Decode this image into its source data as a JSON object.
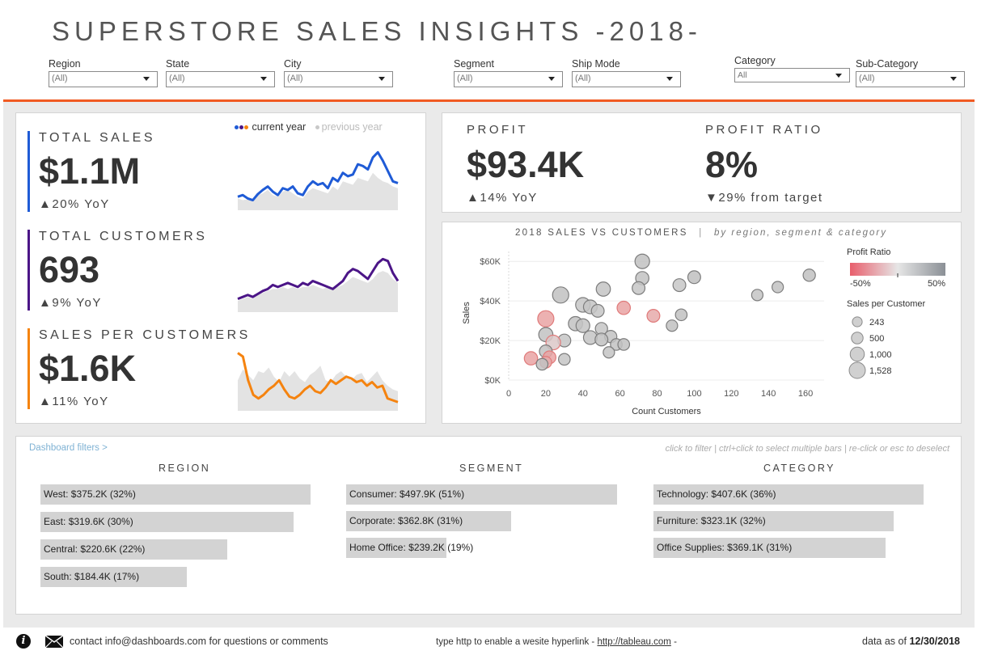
{
  "title": "SUPERSTORE SALES INSIGHTS -2018-",
  "filters": [
    {
      "label": "Region",
      "value": "(All)"
    },
    {
      "label": "State",
      "value": "(All)"
    },
    {
      "label": "City",
      "value": "(All)"
    },
    {
      "label": "Segment",
      "value": "(All)"
    },
    {
      "label": "Ship Mode",
      "value": "(All)"
    },
    {
      "label": "Category",
      "value": "All"
    },
    {
      "label": "Sub-Category",
      "value": "(All)"
    }
  ],
  "colors": {
    "orange": "#f15a22",
    "sales": "#1f5bd6",
    "customers": "#4b1587",
    "spc": "#f5830f",
    "prev": "#e3e3e3"
  },
  "legend": {
    "current": "current year",
    "previous": "previous year"
  },
  "kpis": [
    {
      "label": "TOTAL SALES",
      "value": "$1.1M",
      "yoy": "▲20% YoY",
      "color": "#1f5bd6"
    },
    {
      "label": "TOTAL CUSTOMERS",
      "value": "693",
      "yoy": "▲9% YoY",
      "color": "#4b1587"
    },
    {
      "label": "SALES PER CUSTOMERS",
      "value": "$1.6K",
      "yoy": "▲11% YoY",
      "color": "#f5830f"
    }
  ],
  "sparklines": {
    "sales_current": [
      12,
      14,
      10,
      8,
      15,
      20,
      24,
      18,
      14,
      22,
      20,
      24,
      16,
      14,
      24,
      30,
      26,
      28,
      22,
      34,
      30,
      40,
      36,
      38,
      50,
      48,
      44,
      58,
      64,
      54,
      42,
      30,
      28
    ],
    "sales_previous": [
      10,
      8,
      9,
      7,
      14,
      16,
      20,
      14,
      12,
      18,
      20,
      16,
      12,
      10,
      18,
      22,
      20,
      18,
      16,
      24,
      20,
      30,
      28,
      26,
      34,
      32,
      30,
      40,
      34,
      30,
      28,
      24,
      22
    ],
    "customers_current": [
      10,
      12,
      14,
      12,
      15,
      18,
      20,
      24,
      22,
      24,
      26,
      24,
      22,
      26,
      24,
      28,
      26,
      24,
      22,
      20,
      24,
      28,
      36,
      40,
      38,
      34,
      30,
      38,
      46,
      50,
      48,
      36,
      28
    ],
    "customers_previous": [
      8,
      10,
      12,
      10,
      14,
      16,
      18,
      20,
      20,
      22,
      20,
      22,
      20,
      22,
      22,
      24,
      22,
      20,
      22,
      20,
      22,
      24,
      28,
      32,
      30,
      28,
      26,
      30,
      36,
      38,
      36,
      30,
      26
    ],
    "spc_current": [
      60,
      56,
      30,
      14,
      10,
      14,
      20,
      24,
      30,
      20,
      12,
      10,
      14,
      20,
      24,
      18,
      16,
      22,
      30,
      26,
      30,
      34,
      32,
      28,
      30,
      24,
      28,
      22,
      24,
      10,
      8,
      6
    ],
    "spc_previous": [
      30,
      42,
      36,
      30,
      40,
      38,
      44,
      34,
      28,
      40,
      34,
      40,
      32,
      28,
      36,
      40,
      46,
      30,
      28,
      36,
      40,
      34,
      30,
      36,
      38,
      28,
      34,
      40,
      30,
      24,
      20,
      18
    ]
  },
  "profit": {
    "label": "PROFIT",
    "value": "$93.4K",
    "delta": "▲14% YoY"
  },
  "profit_ratio": {
    "label": "PROFIT RATIO",
    "value": "8%",
    "delta": "▼29% from target"
  },
  "scatter": {
    "title": "2018 SALES VS CUSTOMERS",
    "subtitle": "by region, segment & category",
    "separator": "|",
    "xlabel": "Count Customers",
    "ylabel": "Sales",
    "legend_ratio_title": "Profit Ratio",
    "legend_ratio_min": "-50%",
    "legend_ratio_max": "50%",
    "legend_size_title": "Sales per Customer",
    "size_legend": [
      "243",
      "500",
      "1,000",
      "1,528"
    ]
  },
  "chart_data": {
    "type": "scatter",
    "title": "2018 SALES VS CUSTOMERS | by region, segment & category",
    "xlabel": "Count Customers",
    "ylabel": "Sales",
    "xlim": [
      0,
      170
    ],
    "ylim": [
      0,
      65000
    ],
    "x_ticks": [
      "0",
      "20",
      "40",
      "60",
      "80",
      "100",
      "120",
      "140",
      "160"
    ],
    "y_ticks": [
      "$0K",
      "$20K",
      "$40K",
      "$60K"
    ],
    "points": [
      {
        "x": 72,
        "y": 60000,
        "size": 1100,
        "ratio": 0.05
      },
      {
        "x": 162,
        "y": 53000,
        "size": 600,
        "ratio": 0.05
      },
      {
        "x": 100,
        "y": 52000,
        "size": 700,
        "ratio": 0.06
      },
      {
        "x": 72,
        "y": 51500,
        "size": 800,
        "ratio": 0.04
      },
      {
        "x": 92,
        "y": 48000,
        "size": 700,
        "ratio": 0.01
      },
      {
        "x": 145,
        "y": 47000,
        "size": 450,
        "ratio": 0.04
      },
      {
        "x": 70,
        "y": 46500,
        "size": 700,
        "ratio": 0.02
      },
      {
        "x": 51,
        "y": 46000,
        "size": 1000,
        "ratio": 0.03
      },
      {
        "x": 134,
        "y": 43000,
        "size": 450,
        "ratio": 0.03
      },
      {
        "x": 28,
        "y": 43000,
        "size": 1528,
        "ratio": 0.05
      },
      {
        "x": 40,
        "y": 38000,
        "size": 1100,
        "ratio": 0.02
      },
      {
        "x": 44,
        "y": 37000,
        "size": 900,
        "ratio": 0.03
      },
      {
        "x": 62,
        "y": 36500,
        "size": 800,
        "ratio": -0.35
      },
      {
        "x": 48,
        "y": 35000,
        "size": 700,
        "ratio": 0.02
      },
      {
        "x": 93,
        "y": 33000,
        "size": 500,
        "ratio": 0.05
      },
      {
        "x": 78,
        "y": 32500,
        "size": 700,
        "ratio": -0.3
      },
      {
        "x": 20,
        "y": 31000,
        "size": 1528,
        "ratio": -0.35
      },
      {
        "x": 36,
        "y": 28500,
        "size": 1000,
        "ratio": 0.04
      },
      {
        "x": 40,
        "y": 27500,
        "size": 900,
        "ratio": 0.03
      },
      {
        "x": 88,
        "y": 27500,
        "size": 450,
        "ratio": 0.05
      },
      {
        "x": 50,
        "y": 26000,
        "size": 600,
        "ratio": 0.02
      },
      {
        "x": 20,
        "y": 23000,
        "size": 1000,
        "ratio": 0.04
      },
      {
        "x": 55,
        "y": 22000,
        "size": 600,
        "ratio": 0.04
      },
      {
        "x": 44,
        "y": 21500,
        "size": 900,
        "ratio": 0.03
      },
      {
        "x": 30,
        "y": 20000,
        "size": 700,
        "ratio": 0.02
      },
      {
        "x": 50,
        "y": 20500,
        "size": 700,
        "ratio": 0.05
      },
      {
        "x": 24,
        "y": 19000,
        "size": 1100,
        "ratio": -0.1
      },
      {
        "x": 58,
        "y": 18000,
        "size": 500,
        "ratio": 0.04
      },
      {
        "x": 62,
        "y": 18000,
        "size": 500,
        "ratio": 0.05
      },
      {
        "x": 20,
        "y": 14500,
        "size": 700,
        "ratio": 0.05
      },
      {
        "x": 54,
        "y": 14000,
        "size": 450,
        "ratio": 0.03
      },
      {
        "x": 12,
        "y": 11000,
        "size": 800,
        "ratio": -0.35
      },
      {
        "x": 22,
        "y": 11500,
        "size": 700,
        "ratio": -0.35
      },
      {
        "x": 30,
        "y": 10500,
        "size": 500,
        "ratio": 0.02
      },
      {
        "x": 20,
        "y": 9000,
        "size": 500,
        "ratio": -0.3
      },
      {
        "x": 18,
        "y": 8000,
        "size": 500,
        "ratio": 0.05
      }
    ]
  },
  "bottom": {
    "link": "Dashboard filters >",
    "hint": "click to filter | ctrl+click to select multiple bars | re-click or esc to deselect",
    "groups": [
      {
        "title": "REGION",
        "items": [
          {
            "label": "West:",
            "value": "$375.2K (32%)",
            "pct": 32
          },
          {
            "label": "East:",
            "value": "$319.6K (30%)",
            "pct": 30
          },
          {
            "label": "Central:",
            "value": "$220.6K (22%)",
            "pct": 22
          },
          {
            "label": "South:",
            "value": "$184.4K (17%)",
            "pct": 17
          }
        ]
      },
      {
        "title": "SEGMENT",
        "items": [
          {
            "label": "Consumer:",
            "value": "$497.9K (51%)",
            "pct": 51
          },
          {
            "label": "Corporate:",
            "value": "$362.8K (31%)",
            "pct": 31
          },
          {
            "label": "Home Office:",
            "value": "$239.2K (19%)",
            "pct": 19
          }
        ]
      },
      {
        "title": "CATEGORY",
        "items": [
          {
            "label": "Technology:",
            "value": "$407.6K (36%)",
            "pct": 36
          },
          {
            "label": "Furniture:",
            "value": "$323.1K (32%)",
            "pct": 32
          },
          {
            "label": "Office Supplies:",
            "value": "$369.1K (31%)",
            "pct": 31
          }
        ]
      }
    ]
  },
  "footer": {
    "contact": "contact info@dashboards.com for questions or comments",
    "hyper_prefix": "type http to enable a wesite hyperlink - ",
    "hyper_link": "http://tableau.com",
    "hyper_suffix": " -",
    "asof_label": "data as of",
    "asof_date": "12/30/2018"
  }
}
